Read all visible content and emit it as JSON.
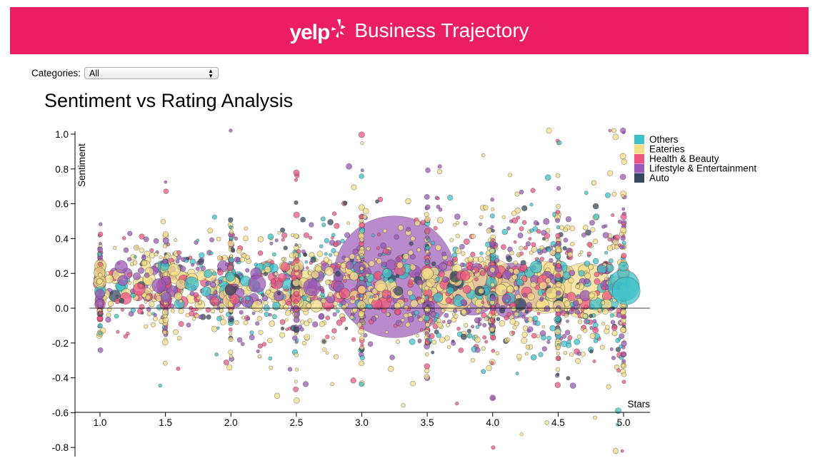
{
  "header": {
    "logo_text": "yelp",
    "title": "Business Trajectory",
    "background": "#ec1e63"
  },
  "filter": {
    "label": "Categories:",
    "selected": "All"
  },
  "chart_data": {
    "type": "scatter",
    "title": "Sentiment vs Rating Analysis",
    "xlabel": "Stars",
    "ylabel": "Sentiment",
    "xlim": [
      0.9,
      5.2
    ],
    "ylim": [
      -0.85,
      1.05
    ],
    "x_ticks": [
      "1.0",
      "1.5",
      "2.0",
      "2.5",
      "3.0",
      "3.5",
      "4.0",
      "4.5",
      "5.0"
    ],
    "y_ticks": [
      "1.0",
      "0.8",
      "0.6",
      "0.4",
      "0.2",
      "0.0",
      "-0.2",
      "-0.4",
      "-0.6",
      "-0.8"
    ],
    "grid": false,
    "legend_position": "top-right",
    "series": [
      {
        "name": "Others",
        "color": "#3ec1c9"
      },
      {
        "name": "Eateries",
        "color": "#f6dd8a"
      },
      {
        "name": "Health & Beauty",
        "color": "#ee5680"
      },
      {
        "name": "Lifestyle & Entertainment",
        "color": "#9b59b6"
      },
      {
        "name": "Auto",
        "color": "#34495e"
      }
    ],
    "large_points": [
      {
        "x": 3.25,
        "y": 0.18,
        "r": 0.35,
        "series": 3
      },
      {
        "x": 3.85,
        "y": 0.1,
        "r": 0.14,
        "series": 3
      },
      {
        "x": 4.15,
        "y": 0.1,
        "r": 0.16,
        "series": 3
      },
      {
        "x": 4.7,
        "y": 0.1,
        "r": 0.16,
        "series": 1
      },
      {
        "x": 4.4,
        "y": 0.12,
        "r": 0.15,
        "series": 1
      },
      {
        "x": 4.0,
        "y": 0.14,
        "r": 0.14,
        "series": 1
      },
      {
        "x": 3.7,
        "y": 0.1,
        "r": 0.12,
        "series": 1
      },
      {
        "x": 5.0,
        "y": 0.13,
        "r": 0.09,
        "series": 0
      },
      {
        "x": 5.02,
        "y": 0.1,
        "r": 0.08,
        "series": 0
      },
      {
        "x": 2.62,
        "y": 0.12,
        "r": 0.05,
        "series": 3
      },
      {
        "x": 2.2,
        "y": 0.14,
        "r": 0.05,
        "series": 3
      },
      {
        "x": 1.7,
        "y": 0.14,
        "r": 0.04,
        "series": 0
      },
      {
        "x": 1.45,
        "y": 0.13,
        "r": 0.04,
        "series": 3
      }
    ],
    "dense_band": {
      "count": 2600,
      "center_y": 0.13,
      "sd_y": 0.18,
      "min_x": 1.0,
      "max_x": 5.0
    }
  }
}
